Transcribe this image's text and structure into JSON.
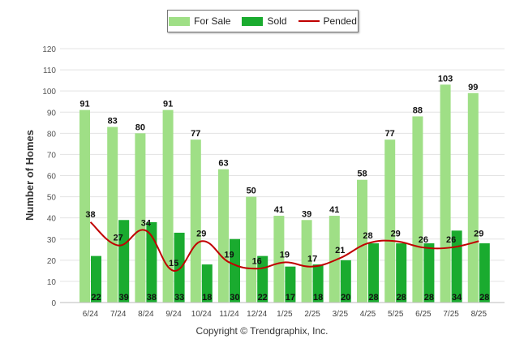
{
  "chart_data": {
    "type": "bar",
    "categories": [
      "6/24",
      "7/24",
      "8/24",
      "9/24",
      "10/24",
      "11/24",
      "12/24",
      "1/25",
      "2/25",
      "3/25",
      "4/25",
      "5/25",
      "6/25",
      "7/25",
      "8/25"
    ],
    "series": [
      {
        "name": "For Sale",
        "type": "bar",
        "color": "#9fdf86",
        "values": [
          91,
          83,
          80,
          91,
          77,
          63,
          50,
          41,
          39,
          41,
          58,
          77,
          88,
          103,
          99
        ]
      },
      {
        "name": "Sold",
        "type": "bar",
        "color": "#1aab2f",
        "values": [
          22,
          39,
          38,
          33,
          18,
          30,
          22,
          17,
          18,
          20,
          28,
          28,
          28,
          34,
          28
        ]
      },
      {
        "name": "Pended",
        "type": "line",
        "color": "#c00000",
        "values": [
          38,
          27,
          34,
          15,
          29,
          19,
          16,
          19,
          17,
          21,
          28,
          29,
          26,
          26,
          29
        ]
      }
    ],
    "ylabel": "Number of Homes",
    "ylim": [
      0,
      120
    ],
    "yticks": [
      0,
      10,
      20,
      30,
      40,
      50,
      60,
      70,
      80,
      90,
      100,
      110,
      120
    ],
    "grid": true,
    "legend_position": "top-center"
  },
  "footer": {
    "copyright": "Copyright © Trendgraphix, Inc."
  }
}
